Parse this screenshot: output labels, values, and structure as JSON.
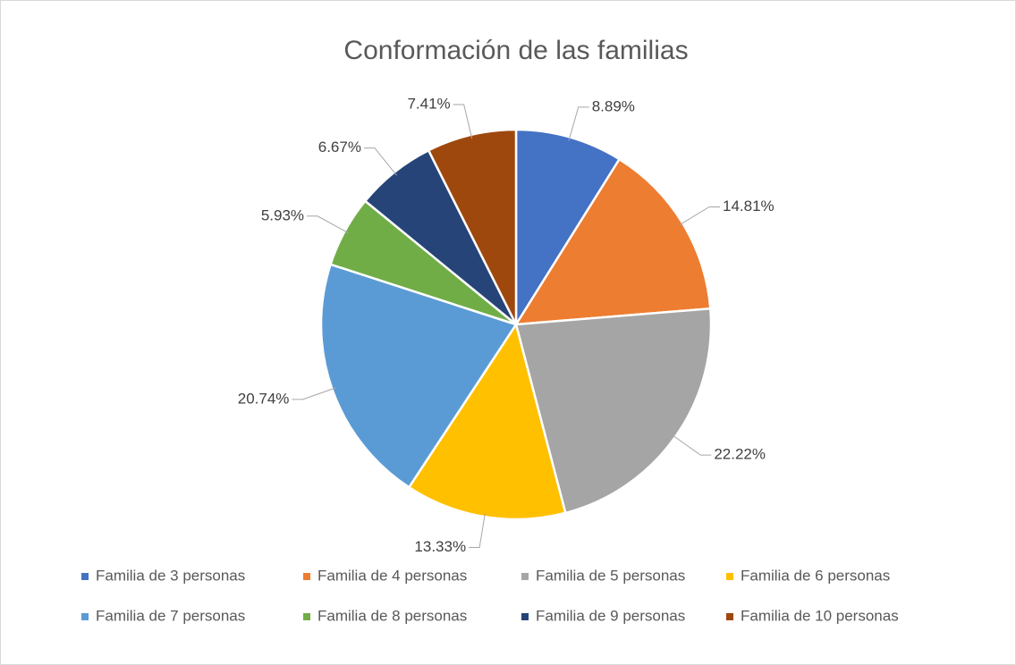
{
  "chart_data": {
    "type": "pie",
    "title": "Conformación de las familias",
    "categories": [
      "Familia de 3 personas",
      "Familia de 4 personas",
      "Familia de 5 personas",
      "Familia de 6 personas",
      "Familia de 7 personas",
      "Familia de 8 personas",
      "Familia de 9 personas",
      "Familia de 10 personas"
    ],
    "values": [
      8.89,
      14.81,
      22.22,
      13.33,
      20.74,
      5.93,
      6.67,
      7.41
    ],
    "value_labels": [
      "8.89%",
      "14.81%",
      "22.22%",
      "13.33%",
      "20.74%",
      "5.93%",
      "6.67%",
      "7.41%"
    ],
    "colors": [
      "#4472c4",
      "#ed7d31",
      "#a5a5a5",
      "#ffc000",
      "#5b9bd5",
      "#70ad47",
      "#264478",
      "#9e480e"
    ],
    "legend": "bottom"
  }
}
